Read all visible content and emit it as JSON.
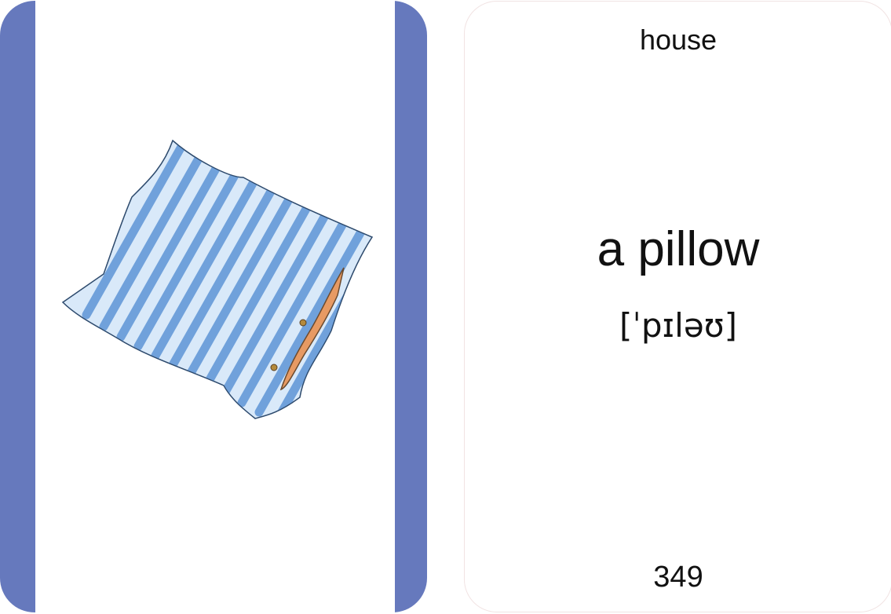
{
  "front_card": {
    "band_color": "#6679bd",
    "picture": {
      "icon": "striped-pillow-illustration",
      "stripe_color": "#5d95d6",
      "base_color": "#d9e9f9",
      "lining_color": "#e79a63"
    }
  },
  "back_card": {
    "category": "house",
    "word": "a pillow",
    "transcription": "[ˈpɪləʊ]",
    "number": "349"
  }
}
